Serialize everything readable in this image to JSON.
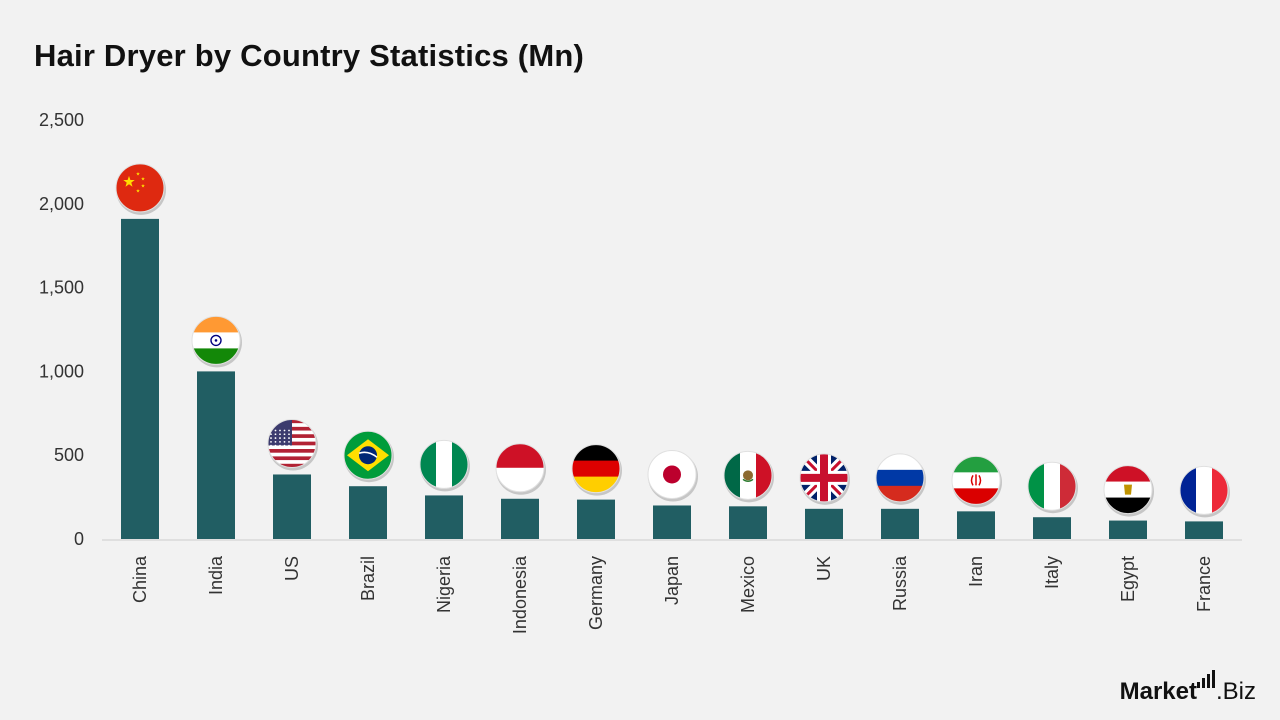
{
  "chart_data": {
    "type": "bar",
    "title": "Hair Dryer by Country Statistics (Mn)",
    "categories": [
      "China",
      "India",
      "US",
      "Brazil",
      "Nigeria",
      "Indonesia",
      "Germany",
      "Japan",
      "Mexico",
      "UK",
      "Russia",
      "Iran",
      "Italy",
      "Egypt",
      "France"
    ],
    "values": [
      1910,
      1000,
      385,
      315,
      260,
      240,
      235,
      200,
      195,
      180,
      180,
      165,
      130,
      110,
      105
    ],
    "ylim": [
      0,
      2500
    ],
    "yticks": [
      0,
      500,
      1000,
      1500,
      2000,
      2500
    ],
    "ytick_labels": [
      "0",
      "500",
      "1,000",
      "1,500",
      "2,000",
      "2,500"
    ],
    "bar_color": "#215e63",
    "grid": false,
    "flag_icons": [
      "china-flag-icon",
      "india-flag-icon",
      "us-flag-icon",
      "brazil-flag-icon",
      "nigeria-flag-icon",
      "indonesia-flag-icon",
      "germany-flag-icon",
      "japan-flag-icon",
      "mexico-flag-icon",
      "uk-flag-icon",
      "russia-flag-icon",
      "iran-flag-icon",
      "italy-flag-icon",
      "egypt-flag-icon",
      "france-flag-icon"
    ]
  },
  "brand": {
    "name": "Market",
    "suffix": ".Biz"
  }
}
